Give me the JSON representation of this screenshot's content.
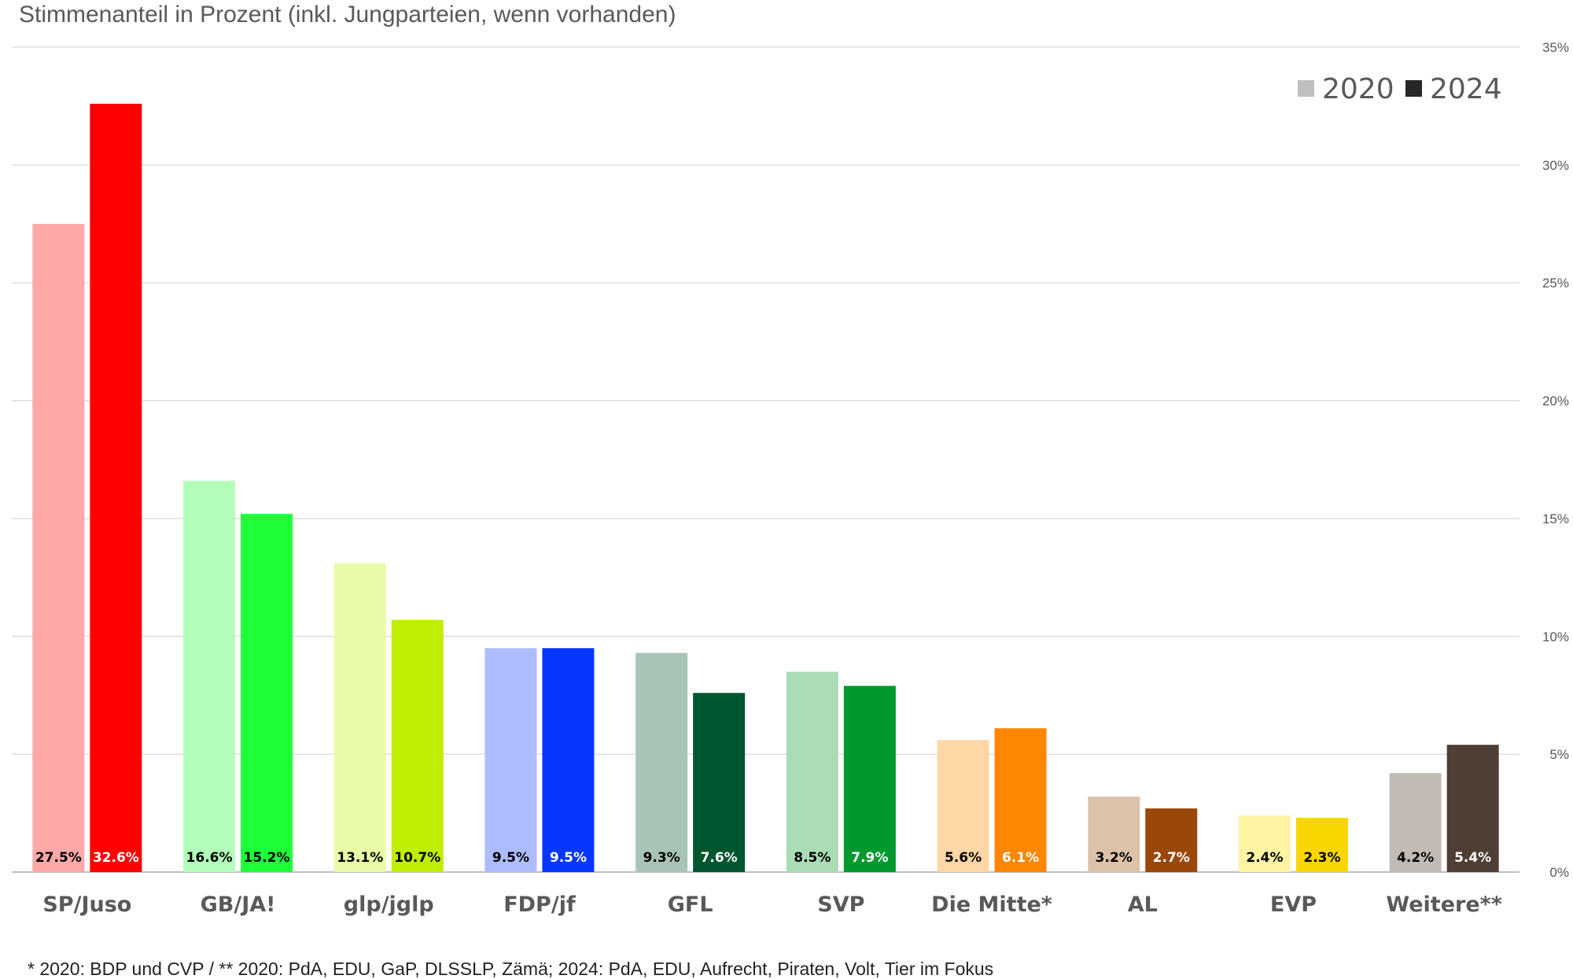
{
  "chart_data": {
    "type": "bar",
    "title": "Stimmenanteil in Prozent (inkl. Jungparteien, wenn vorhanden)",
    "footnote": "* 2020: BDP und CVP / ** 2020: PdA, EDU, GaP, DLSSLP, Zämä; 2024: PdA, EDU, Aufrecht, Piraten, Volt, Tier im Fokus",
    "categories": [
      "SP/Juso",
      "GB/JA!",
      "glp/jglp",
      "FDP/jf",
      "GFL",
      "SVP",
      "Die Mitte*",
      "AL",
      "EVP",
      "Weitere**"
    ],
    "series": [
      {
        "name": "2020",
        "values": [
          27.5,
          16.6,
          13.1,
          9.5,
          9.3,
          8.5,
          5.6,
          3.2,
          2.4,
          4.2
        ],
        "labels": [
          "27.5%",
          "16.6%",
          "13.1%",
          "9.5%",
          "9.3%",
          "8.5%",
          "5.6%",
          "3.2%",
          "2.4%",
          "4.2%"
        ],
        "colors": [
          "#fea8a8",
          "#b3ffb9",
          "#e8fba6",
          "#adbcff",
          "#a8c4b5",
          "#aadcb6",
          "#ffd6a6",
          "#dcc2aa",
          "#fdf3a3",
          "#c2bbb5"
        ],
        "label_colors": [
          "#000000",
          "#000000",
          "#000000",
          "#000000",
          "#000000",
          "#000000",
          "#000000",
          "#000000",
          "#000000",
          "#000000"
        ]
      },
      {
        "name": "2024",
        "values": [
          32.6,
          15.2,
          10.7,
          9.5,
          7.6,
          7.9,
          6.1,
          2.7,
          2.3,
          5.4
        ],
        "labels": [
          "32.6%",
          "15.2%",
          "10.7%",
          "9.5%",
          "7.6%",
          "7.9%",
          "6.1%",
          "2.7%",
          "2.3%",
          "5.4%"
        ],
        "colors": [
          "#ff0000",
          "#1eff3a",
          "#bfee00",
          "#0537ff",
          "#00562f",
          "#00992e",
          "#ff8700",
          "#9a470a",
          "#f8d600",
          "#4e3e33"
        ],
        "label_colors": [
          "#ffffff",
          "#000000",
          "#000000",
          "#ffffff",
          "#ffffff",
          "#ffffff",
          "#ffffff",
          "#ffffff",
          "#000000",
          "#ffffff"
        ]
      }
    ],
    "legend": {
      "position": "top-right",
      "items": [
        {
          "label": "2020",
          "color": "#bfbfbf"
        },
        {
          "label": "2024",
          "color": "#262626"
        }
      ]
    },
    "y_axis": {
      "side": "right",
      "ylim": [
        0,
        35
      ],
      "ticks": [
        0,
        5,
        10,
        15,
        20,
        25,
        30,
        35
      ],
      "tick_labels": [
        "0%",
        "5%",
        "10%",
        "15%",
        "20%",
        "25%",
        "30%",
        "35%"
      ]
    },
    "grid": true
  }
}
